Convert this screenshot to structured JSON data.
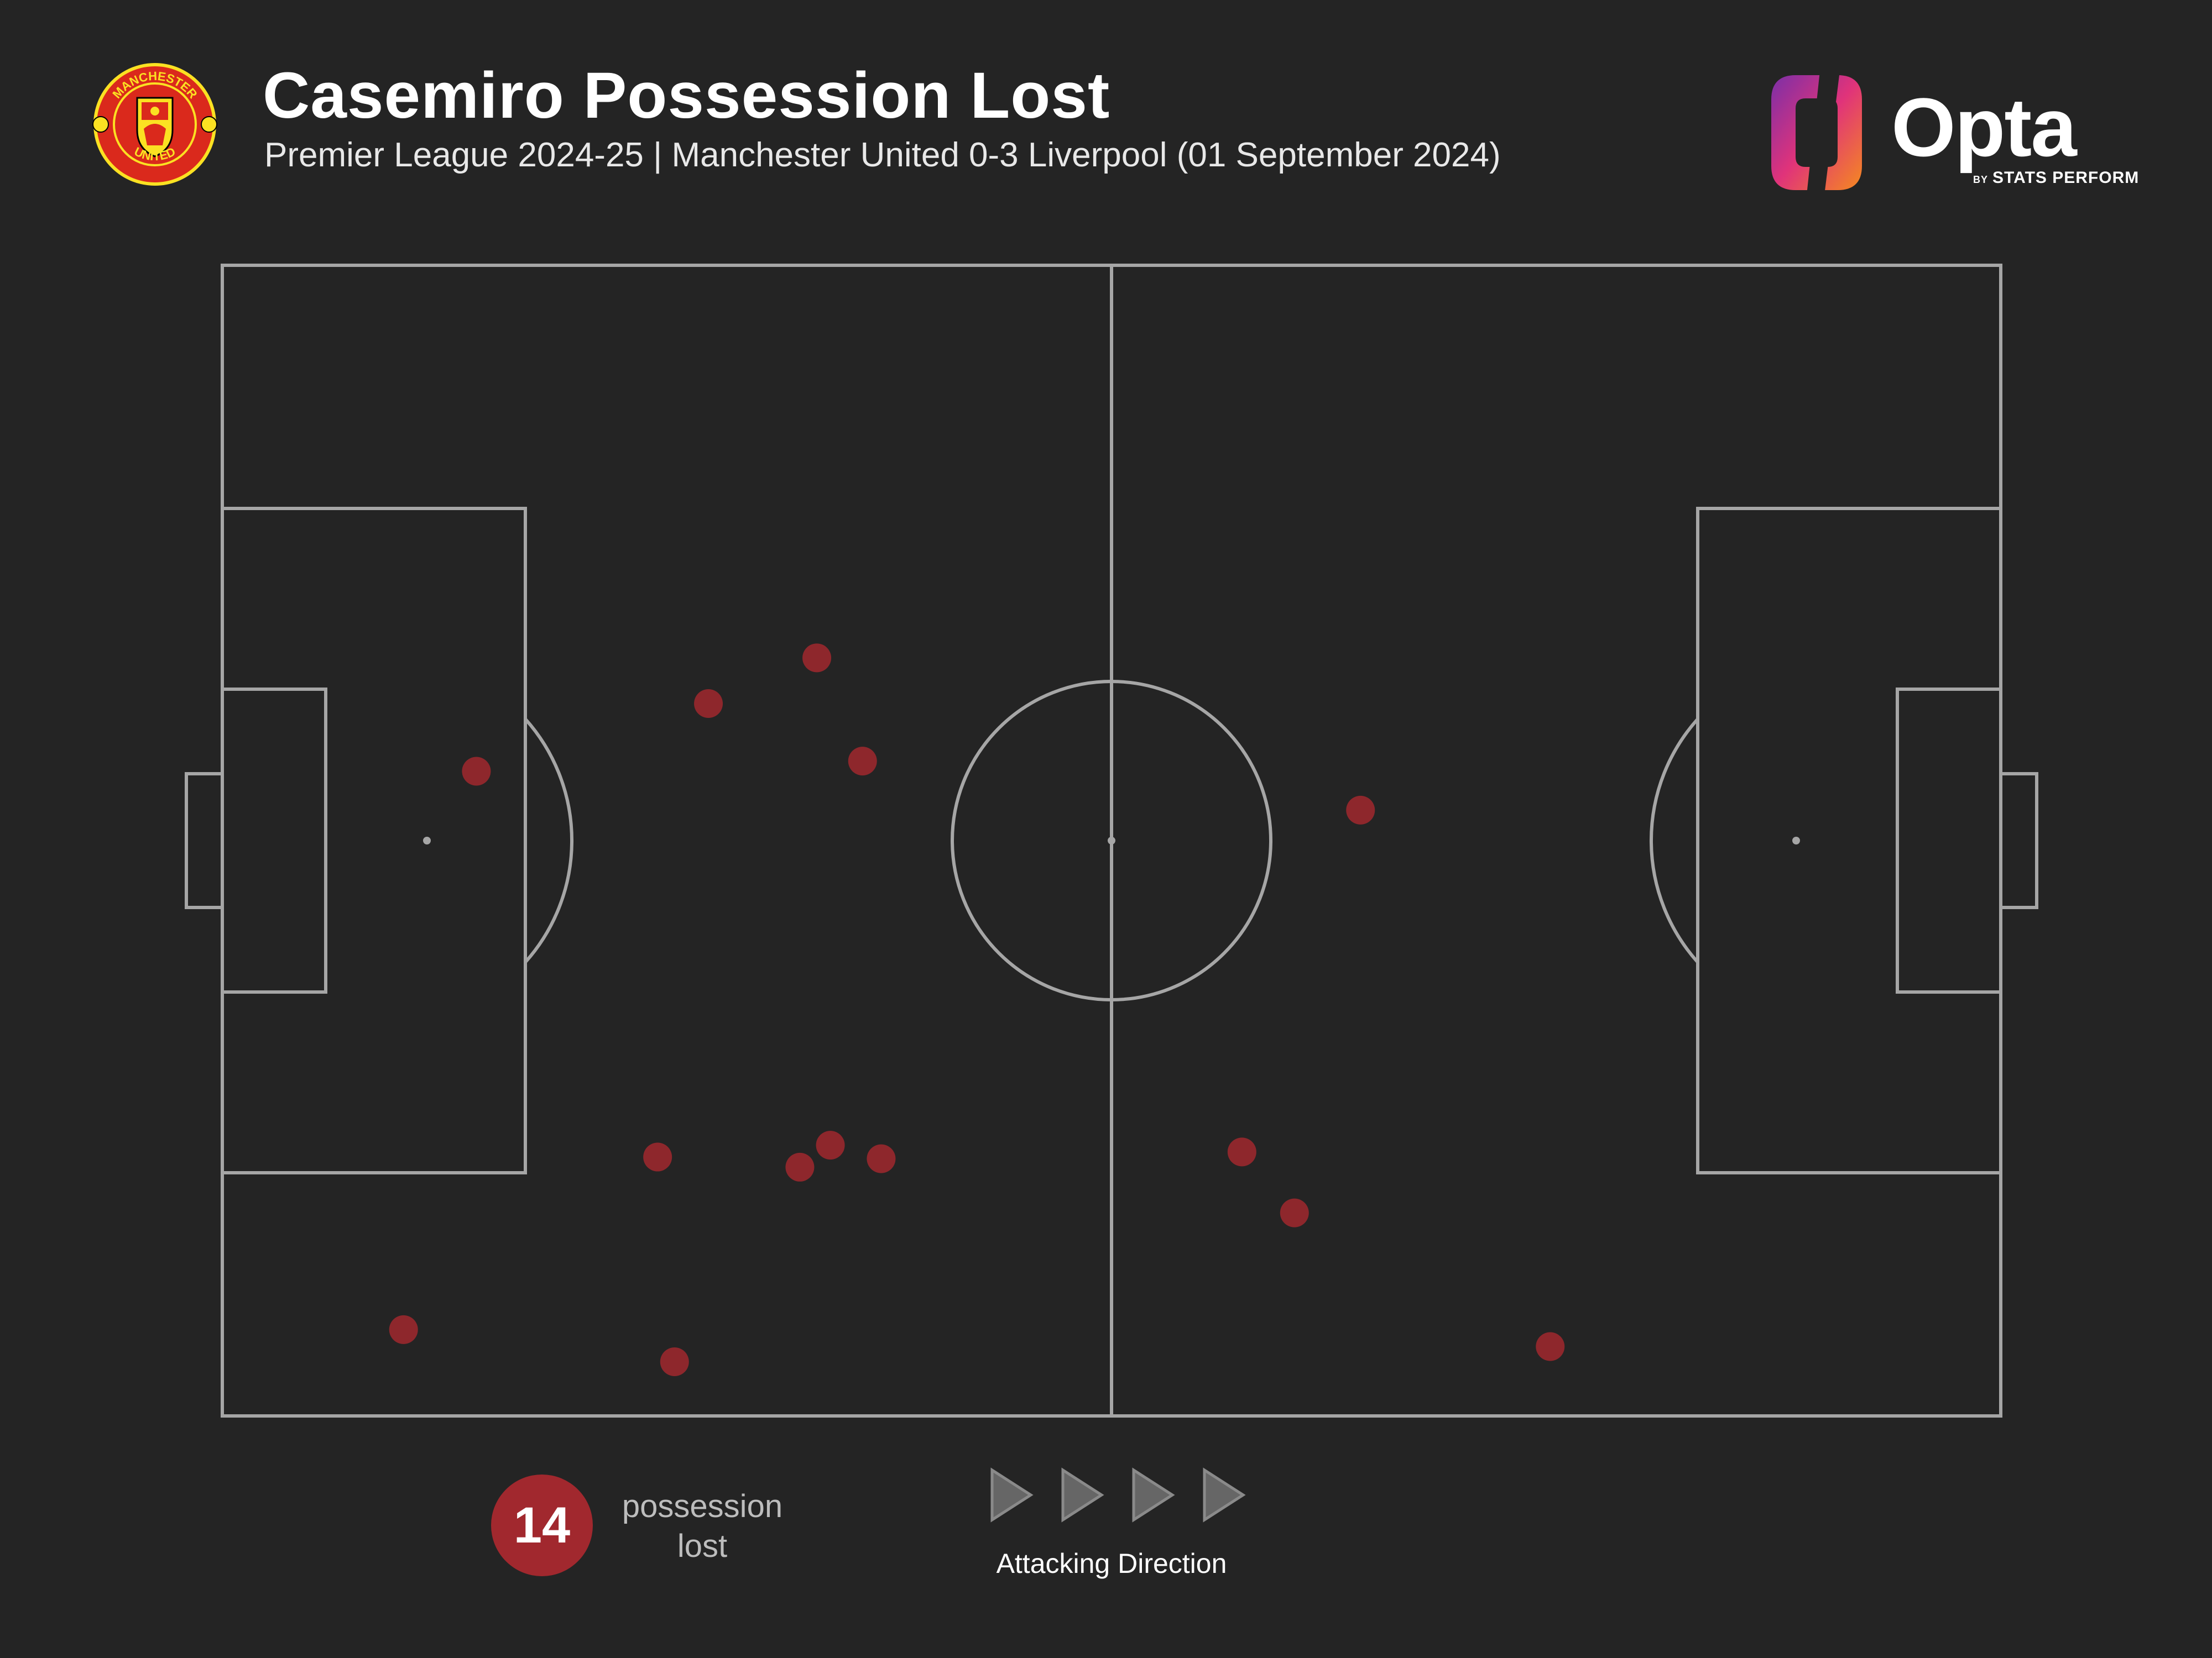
{
  "header": {
    "title": "Casemiro Possession Lost",
    "subtitle": "Premier League 2024-25 | Manchester United 0-3 Liverpool (01 September 2024)"
  },
  "crest": {
    "top_text": "MANCHESTER",
    "bottom_text": "UNITED",
    "colors": {
      "red": "#da291c",
      "yellow": "#fbe122",
      "black": "#000000"
    }
  },
  "brand": {
    "name": "Opta",
    "by": "BY",
    "tagline": "STATS PERFORM",
    "gradient": [
      "#7b2fa8",
      "#e0337a",
      "#f58a1f"
    ]
  },
  "legend": {
    "count": "14",
    "label_line1": "possession",
    "label_line2": "lost",
    "direction_label": "Attacking Direction",
    "marker_color": "#a1282e"
  },
  "chart_data": {
    "type": "scatter",
    "pitch": {
      "length": 105,
      "width": 68,
      "attacking_direction": "left-to-right"
    },
    "series": [
      {
        "name": "possession lost",
        "color": "#a1282e",
        "points": [
          {
            "x": 15.0,
            "y": 38.1
          },
          {
            "x": 28.7,
            "y": 42.1
          },
          {
            "x": 35.1,
            "y": 44.8
          },
          {
            "x": 37.8,
            "y": 38.7
          },
          {
            "x": 67.2,
            "y": 35.8
          },
          {
            "x": 38.9,
            "y": 15.2
          },
          {
            "x": 35.9,
            "y": 16.0
          },
          {
            "x": 25.7,
            "y": 15.3
          },
          {
            "x": 34.1,
            "y": 14.7
          },
          {
            "x": 10.7,
            "y": 5.1
          },
          {
            "x": 26.7,
            "y": 3.2
          },
          {
            "x": 60.2,
            "y": 15.6
          },
          {
            "x": 63.3,
            "y": 12.0
          },
          {
            "x": 78.4,
            "y": 4.1
          }
        ]
      }
    ]
  }
}
